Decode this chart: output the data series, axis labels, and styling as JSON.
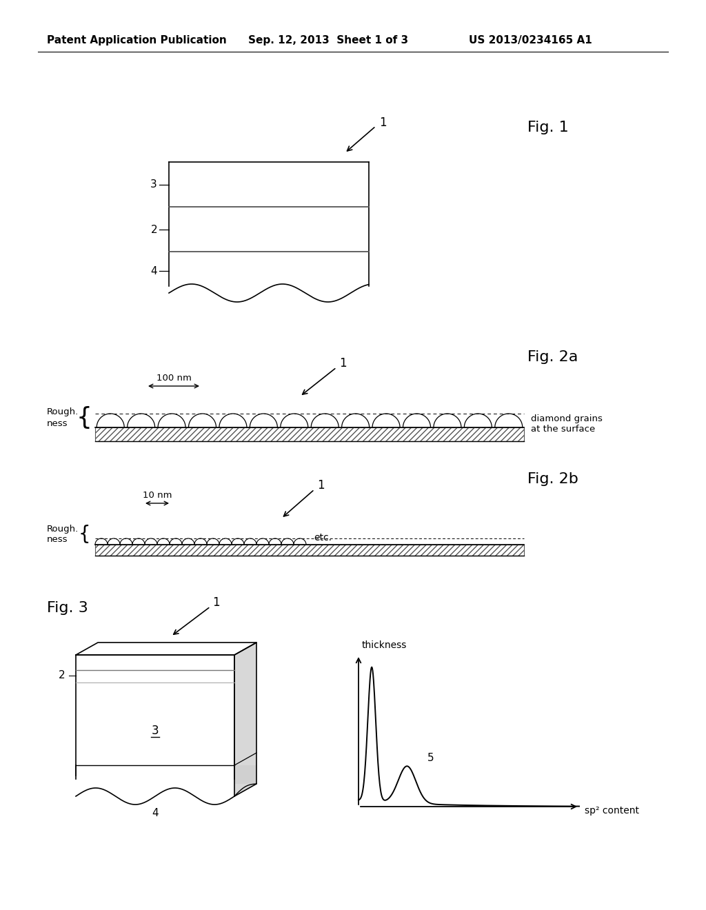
{
  "bg_color": "#ffffff",
  "header_left": "Patent Application Publication",
  "header_center": "Sep. 12, 2013  Sheet 1 of 3",
  "header_right": "US 2013/0234165 A1",
  "fig1_label": "Fig. 1",
  "fig2a_label": "Fig. 2a",
  "fig2b_label": "Fig. 2b",
  "fig3_label": "Fig. 3",
  "label_100nm": "100 nm",
  "label_10nm": "10 nm",
  "label_rough1": "Rough.",
  "label_rough2": "ness",
  "label_diamond": "diamond grains",
  "label_surface": "at the surface",
  "label_etc": "etc.",
  "label_thickness": "thickness",
  "label_sp2": "sp² content"
}
